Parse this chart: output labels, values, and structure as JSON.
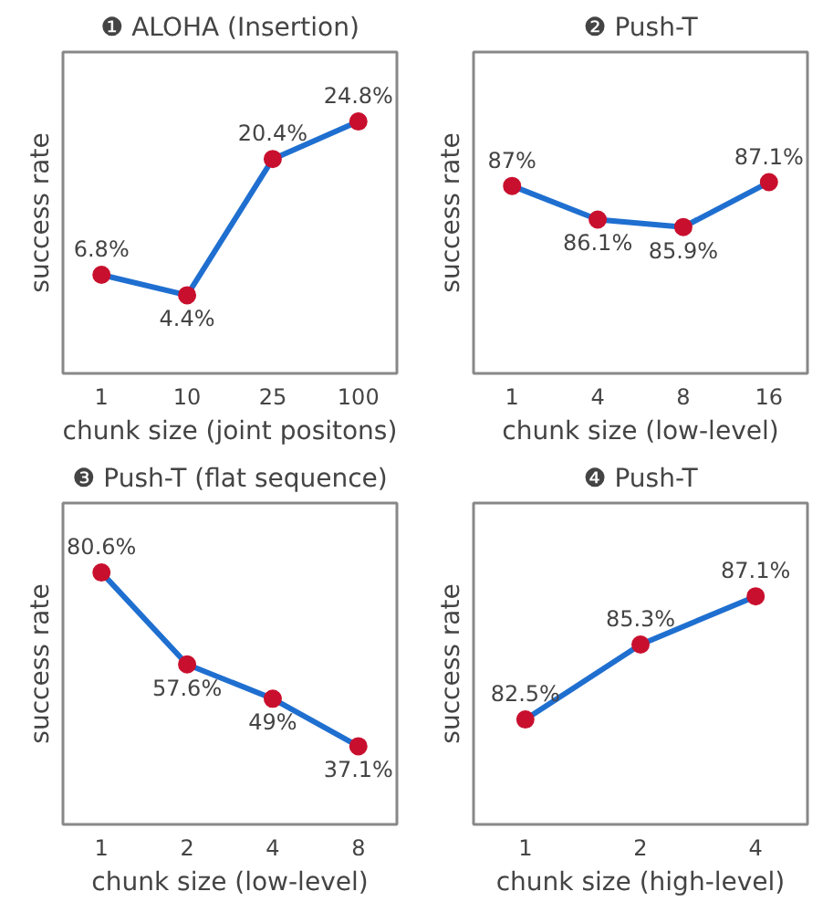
{
  "chart_data": [
    {
      "type": "line",
      "title": "❶ ALOHA (Insertion)",
      "xlabel": "chunk size (joint positons)",
      "ylabel": "success rate",
      "categories": [
        "1",
        "10",
        "25",
        "100"
      ],
      "values": [
        6.8,
        4.4,
        20.4,
        24.8
      ],
      "value_labels": [
        "6.8%",
        "4.4%",
        "20.4%",
        "24.8%"
      ],
      "color": "#1f6fd0",
      "marker": "circle",
      "tick_labels": "x",
      "grid": false
    },
    {
      "type": "line",
      "title": "❷ Push-T",
      "xlabel": "chunk size (low-level)",
      "ylabel": "success rate",
      "categories": [
        "1",
        "4",
        "8",
        "16"
      ],
      "values": [
        87,
        86.1,
        85.9,
        87.1
      ],
      "value_labels": [
        "87%",
        "86.1%",
        "85.9%",
        "87.1%"
      ],
      "color": "#1f6fd0",
      "marker": "circle",
      "tick_labels": "x",
      "grid": false
    },
    {
      "type": "line",
      "title": "❸ Push-T (flat sequence)",
      "xlabel": "chunk size (low-level)",
      "ylabel": "success rate",
      "categories": [
        "1",
        "2",
        "4",
        "8"
      ],
      "values": [
        80.6,
        57.6,
        49,
        37.1
      ],
      "value_labels": [
        "80.6%",
        "57.6%",
        "49%",
        "37.1%"
      ],
      "color": "#1f6fd0",
      "marker": "circle",
      "tick_labels": "x",
      "grid": false
    },
    {
      "type": "line",
      "title": "❹ Push-T",
      "xlabel": "chunk size (high-level)",
      "ylabel": "success rate",
      "categories": [
        "1",
        "2",
        "4"
      ],
      "values": [
        82.5,
        85.3,
        87.1
      ],
      "value_labels": [
        "82.5%",
        "85.3%",
        "87.1%"
      ],
      "color": "#1f6fd0",
      "marker": "circle",
      "tick_labels": "x",
      "grid": false
    }
  ]
}
